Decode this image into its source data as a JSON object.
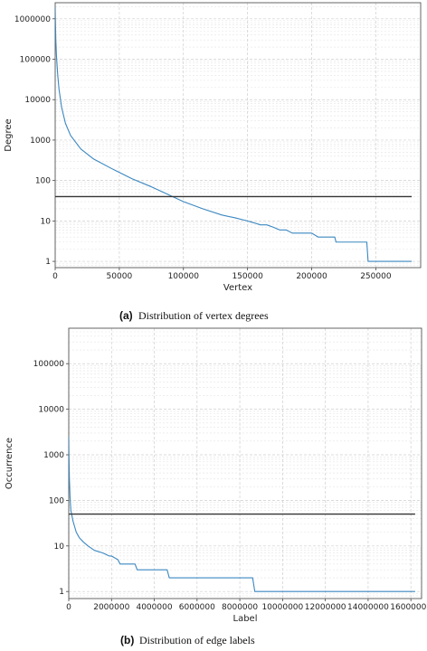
{
  "chart_data": [
    {
      "type": "line",
      "caption_label": "(a)",
      "caption": "Distribution of vertex degrees",
      "xlabel": "Vertex",
      "ylabel": "Degree",
      "xlim": [
        0,
        285000
      ],
      "ylim": [
        0.7,
        2500000
      ],
      "yscale": "log",
      "grid": true,
      "xticks": [
        0,
        50000,
        100000,
        150000,
        200000,
        250000
      ],
      "xtick_labels": [
        "0",
        "50000",
        "100000",
        "150000",
        "200000",
        "250000"
      ],
      "yticks": [
        1,
        10,
        100,
        1000,
        10000,
        100000,
        1000000
      ],
      "ytick_labels": [
        "1",
        "10",
        "100",
        "1000",
        "10000",
        "100000",
        "1000000"
      ],
      "series": [
        {
          "role": "distribution",
          "color": "#3a87c0",
          "x": [
            0,
            200,
            500,
            1000,
            2000,
            3000,
            5000,
            8000,
            12000,
            20000,
            30000,
            45000,
            60000,
            75000,
            85000,
            100000,
            115000,
            130000,
            140000,
            150000,
            155000,
            160000,
            165000,
            170000,
            175000,
            180000,
            185000,
            190000,
            200000,
            205000,
            218000,
            219000,
            243000,
            244000,
            278000
          ],
          "y": [
            2000000,
            800000,
            300000,
            120000,
            40000,
            18000,
            6500,
            2600,
            1300,
            600,
            340,
            190,
            110,
            70,
            50,
            30,
            20,
            14,
            12,
            10,
            9,
            8,
            8,
            7,
            6,
            6,
            5,
            5,
            5,
            4,
            4,
            3,
            3,
            1,
            1
          ]
        },
        {
          "role": "reference",
          "color": "#333333",
          "x": [
            0,
            278000
          ],
          "y": [
            40,
            40
          ]
        }
      ]
    },
    {
      "type": "line",
      "caption_label": "(b)",
      "caption": "Distribution of edge labels",
      "xlabel": "Label",
      "ylabel": "Occurrence",
      "xlim": [
        0,
        16500000
      ],
      "ylim": [
        0.7,
        600000
      ],
      "yscale": "log",
      "grid": true,
      "xticks": [
        0,
        2000000,
        4000000,
        6000000,
        8000000,
        10000000,
        12000000,
        14000000,
        16000000
      ],
      "xtick_labels": [
        "0",
        "2000000",
        "4000000",
        "6000000",
        "8000000",
        "10000000",
        "12000000",
        "14000000",
        "16000000"
      ],
      "yticks": [
        1,
        10,
        100,
        1000,
        10000,
        100000
      ],
      "ytick_labels": [
        "1",
        "10",
        "100",
        "1000",
        "10000",
        "100000"
      ],
      "series": [
        {
          "role": "distribution",
          "color": "#3a87c0",
          "x": [
            0,
            10000,
            30000,
            60000,
            100000,
            200000,
            350000,
            500000,
            700000,
            900000,
            1200000,
            1600000,
            1900000,
            2000000,
            2300000,
            2400000,
            3100000,
            3200000,
            4600000,
            4700000,
            8600000,
            8700000,
            16200000
          ],
          "y": [
            2500,
            900,
            300,
            120,
            60,
            35,
            20,
            15,
            12,
            10,
            8,
            7,
            6,
            6,
            5,
            4,
            4,
            3,
            3,
            2,
            2,
            1,
            1
          ]
        },
        {
          "role": "reference",
          "color": "#333333",
          "x": [
            0,
            16200000
          ],
          "y": [
            50,
            50
          ]
        }
      ]
    }
  ]
}
